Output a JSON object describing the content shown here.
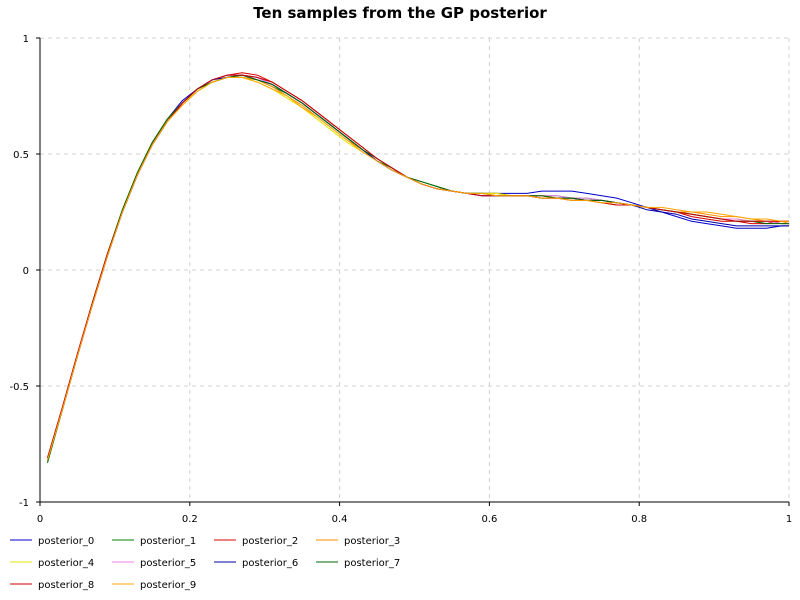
{
  "chart_data": {
    "type": "line",
    "title": "Ten samples from the GP posterior",
    "xlabel": "",
    "ylabel": "",
    "xlim": [
      0,
      1
    ],
    "ylim": [
      -1,
      1
    ],
    "xticks": [
      "0",
      "0.2",
      "0.4",
      "0.6",
      "0.8",
      "1"
    ],
    "yticks": [
      "-1",
      "-0.5",
      "0",
      "0.5",
      "1"
    ],
    "grid": true,
    "legend_position": "bottom",
    "series": [
      {
        "name": "posterior_0",
        "color": "#0000cc",
        "x": [
          0.01,
          0.03,
          0.05,
          0.07,
          0.09,
          0.11,
          0.13,
          0.15,
          0.17,
          0.19,
          0.21,
          0.23,
          0.25,
          0.27,
          0.29,
          0.31,
          0.33,
          0.35,
          0.37,
          0.39,
          0.41,
          0.43,
          0.45,
          0.47,
          0.49,
          0.51,
          0.53,
          0.55,
          0.57,
          0.59,
          0.61,
          0.63,
          0.65,
          0.67,
          0.69,
          0.71,
          0.73,
          0.75,
          0.77,
          0.79,
          0.81,
          0.83,
          0.85,
          0.87,
          0.89,
          0.91,
          0.93,
          0.95,
          0.97,
          0.99,
          1.0
        ],
        "y": [
          -0.82,
          -0.6,
          -0.37,
          -0.15,
          0.06,
          0.25,
          0.41,
          0.55,
          0.65,
          0.73,
          0.78,
          0.82,
          0.84,
          0.84,
          0.83,
          0.8,
          0.76,
          0.72,
          0.67,
          0.62,
          0.57,
          0.52,
          0.47,
          0.43,
          0.4,
          0.37,
          0.35,
          0.34,
          0.33,
          0.33,
          0.33,
          0.33,
          0.33,
          0.34,
          0.34,
          0.34,
          0.33,
          0.32,
          0.31,
          0.29,
          0.27,
          0.25,
          0.23,
          0.21,
          0.2,
          0.19,
          0.18,
          0.18,
          0.18,
          0.19,
          0.19
        ]
      },
      {
        "name": "posterior_1",
        "color": "#008000",
        "x": [
          0.01,
          0.03,
          0.05,
          0.07,
          0.09,
          0.11,
          0.13,
          0.15,
          0.17,
          0.19,
          0.21,
          0.23,
          0.25,
          0.27,
          0.29,
          0.31,
          0.33,
          0.35,
          0.37,
          0.39,
          0.41,
          0.43,
          0.45,
          0.47,
          0.49,
          0.51,
          0.53,
          0.55,
          0.57,
          0.59,
          0.61,
          0.63,
          0.65,
          0.67,
          0.69,
          0.71,
          0.73,
          0.75,
          0.77,
          0.79,
          0.81,
          0.83,
          0.85,
          0.87,
          0.89,
          0.91,
          0.93,
          0.95,
          0.97,
          0.99,
          1.0
        ],
        "y": [
          -0.83,
          -0.6,
          -0.37,
          -0.14,
          0.07,
          0.26,
          0.42,
          0.55,
          0.65,
          0.72,
          0.78,
          0.81,
          0.83,
          0.83,
          0.82,
          0.79,
          0.76,
          0.72,
          0.67,
          0.62,
          0.57,
          0.52,
          0.47,
          0.44,
          0.4,
          0.38,
          0.36,
          0.34,
          0.33,
          0.33,
          0.33,
          0.32,
          0.32,
          0.32,
          0.32,
          0.31,
          0.31,
          0.3,
          0.29,
          0.28,
          0.27,
          0.26,
          0.25,
          0.24,
          0.23,
          0.22,
          0.22,
          0.21,
          0.21,
          0.2,
          0.2
        ]
      },
      {
        "name": "posterior_2",
        "color": "#dd0000",
        "x": [
          0.01,
          0.03,
          0.05,
          0.07,
          0.09,
          0.11,
          0.13,
          0.15,
          0.17,
          0.19,
          0.21,
          0.23,
          0.25,
          0.27,
          0.29,
          0.31,
          0.33,
          0.35,
          0.37,
          0.39,
          0.41,
          0.43,
          0.45,
          0.47,
          0.49,
          0.51,
          0.53,
          0.55,
          0.57,
          0.59,
          0.61,
          0.63,
          0.65,
          0.67,
          0.69,
          0.71,
          0.73,
          0.75,
          0.77,
          0.79,
          0.81,
          0.83,
          0.85,
          0.87,
          0.89,
          0.91,
          0.93,
          0.95,
          0.97,
          0.99,
          1.0
        ],
        "y": [
          -0.81,
          -0.59,
          -0.36,
          -0.14,
          0.07,
          0.25,
          0.41,
          0.54,
          0.64,
          0.72,
          0.78,
          0.82,
          0.84,
          0.85,
          0.84,
          0.81,
          0.77,
          0.73,
          0.68,
          0.63,
          0.58,
          0.53,
          0.48,
          0.44,
          0.4,
          0.37,
          0.35,
          0.34,
          0.33,
          0.32,
          0.32,
          0.32,
          0.32,
          0.32,
          0.31,
          0.31,
          0.3,
          0.3,
          0.29,
          0.28,
          0.27,
          0.26,
          0.25,
          0.23,
          0.22,
          0.21,
          0.21,
          0.2,
          0.2,
          0.21,
          0.21
        ]
      },
      {
        "name": "posterior_3",
        "color": "#ff8c00",
        "x": [
          0.01,
          0.03,
          0.05,
          0.07,
          0.09,
          0.11,
          0.13,
          0.15,
          0.17,
          0.19,
          0.21,
          0.23,
          0.25,
          0.27,
          0.29,
          0.31,
          0.33,
          0.35,
          0.37,
          0.39,
          0.41,
          0.43,
          0.45,
          0.47,
          0.49,
          0.51,
          0.53,
          0.55,
          0.57,
          0.59,
          0.61,
          0.63,
          0.65,
          0.67,
          0.69,
          0.71,
          0.73,
          0.75,
          0.77,
          0.79,
          0.81,
          0.83,
          0.85,
          0.87,
          0.89,
          0.91,
          0.93,
          0.95,
          0.97,
          0.99,
          1.0
        ],
        "y": [
          -0.82,
          -0.6,
          -0.37,
          -0.15,
          0.06,
          0.25,
          0.41,
          0.54,
          0.64,
          0.71,
          0.77,
          0.81,
          0.83,
          0.83,
          0.82,
          0.79,
          0.75,
          0.71,
          0.66,
          0.61,
          0.56,
          0.52,
          0.47,
          0.43,
          0.4,
          0.37,
          0.35,
          0.34,
          0.33,
          0.33,
          0.33,
          0.32,
          0.32,
          0.31,
          0.31,
          0.3,
          0.3,
          0.29,
          0.28,
          0.28,
          0.27,
          0.26,
          0.25,
          0.25,
          0.24,
          0.23,
          0.23,
          0.22,
          0.21,
          0.21,
          0.2
        ]
      },
      {
        "name": "posterior_4",
        "color": "#e6e600",
        "x": [
          0.01,
          0.03,
          0.05,
          0.07,
          0.09,
          0.11,
          0.13,
          0.15,
          0.17,
          0.19,
          0.21,
          0.23,
          0.25,
          0.27,
          0.29,
          0.31,
          0.33,
          0.35,
          0.37,
          0.39,
          0.41,
          0.43,
          0.45,
          0.47,
          0.49,
          0.51,
          0.53,
          0.55,
          0.57,
          0.59,
          0.61,
          0.63,
          0.65,
          0.67,
          0.69,
          0.71,
          0.73,
          0.75,
          0.77,
          0.79,
          0.81,
          0.83,
          0.85,
          0.87,
          0.89,
          0.91,
          0.93,
          0.95,
          0.97,
          0.99,
          1.0
        ],
        "y": [
          -0.82,
          -0.6,
          -0.37,
          -0.14,
          0.07,
          0.26,
          0.42,
          0.55,
          0.65,
          0.72,
          0.77,
          0.81,
          0.83,
          0.83,
          0.81,
          0.78,
          0.74,
          0.7,
          0.65,
          0.6,
          0.55,
          0.51,
          0.47,
          0.43,
          0.4,
          0.37,
          0.35,
          0.34,
          0.33,
          0.33,
          0.33,
          0.32,
          0.32,
          0.32,
          0.31,
          0.31,
          0.3,
          0.3,
          0.29,
          0.28,
          0.27,
          0.26,
          0.25,
          0.24,
          0.23,
          0.22,
          0.22,
          0.21,
          0.21,
          0.2,
          0.2
        ]
      },
      {
        "name": "posterior_5",
        "color": "#ee82ee",
        "x": [
          0.01,
          0.03,
          0.05,
          0.07,
          0.09,
          0.11,
          0.13,
          0.15,
          0.17,
          0.19,
          0.21,
          0.23,
          0.25,
          0.27,
          0.29,
          0.31,
          0.33,
          0.35,
          0.37,
          0.39,
          0.41,
          0.43,
          0.45,
          0.47,
          0.49,
          0.51,
          0.53,
          0.55,
          0.57,
          0.59,
          0.61,
          0.63,
          0.65,
          0.67,
          0.69,
          0.71,
          0.73,
          0.75,
          0.77,
          0.79,
          0.81,
          0.83,
          0.85,
          0.87,
          0.89,
          0.91,
          0.93,
          0.95,
          0.97,
          0.99,
          1.0
        ],
        "y": [
          -0.82,
          -0.6,
          -0.37,
          -0.15,
          0.06,
          0.25,
          0.41,
          0.54,
          0.64,
          0.72,
          0.78,
          0.82,
          0.84,
          0.84,
          0.83,
          0.8,
          0.76,
          0.72,
          0.67,
          0.62,
          0.57,
          0.52,
          0.47,
          0.43,
          0.4,
          0.37,
          0.35,
          0.34,
          0.33,
          0.32,
          0.32,
          0.32,
          0.32,
          0.32,
          0.32,
          0.31,
          0.31,
          0.3,
          0.29,
          0.28,
          0.27,
          0.26,
          0.25,
          0.24,
          0.23,
          0.22,
          0.22,
          0.21,
          0.21,
          0.2,
          0.2
        ]
      },
      {
        "name": "posterior_6",
        "color": "#0000aa",
        "x": [
          0.01,
          0.03,
          0.05,
          0.07,
          0.09,
          0.11,
          0.13,
          0.15,
          0.17,
          0.19,
          0.21,
          0.23,
          0.25,
          0.27,
          0.29,
          0.31,
          0.33,
          0.35,
          0.37,
          0.39,
          0.41,
          0.43,
          0.45,
          0.47,
          0.49,
          0.51,
          0.53,
          0.55,
          0.57,
          0.59,
          0.61,
          0.63,
          0.65,
          0.67,
          0.69,
          0.71,
          0.73,
          0.75,
          0.77,
          0.79,
          0.81,
          0.83,
          0.85,
          0.87,
          0.89,
          0.91,
          0.93,
          0.95,
          0.97,
          0.99,
          1.0
        ],
        "y": [
          -0.82,
          -0.6,
          -0.37,
          -0.15,
          0.06,
          0.25,
          0.41,
          0.54,
          0.64,
          0.72,
          0.78,
          0.82,
          0.83,
          0.84,
          0.82,
          0.8,
          0.76,
          0.72,
          0.67,
          0.62,
          0.57,
          0.52,
          0.47,
          0.43,
          0.4,
          0.37,
          0.35,
          0.34,
          0.33,
          0.32,
          0.32,
          0.32,
          0.32,
          0.31,
          0.31,
          0.31,
          0.3,
          0.3,
          0.29,
          0.28,
          0.26,
          0.25,
          0.24,
          0.22,
          0.21,
          0.2,
          0.19,
          0.19,
          0.19,
          0.19,
          0.19
        ]
      },
      {
        "name": "posterior_7",
        "color": "#006400",
        "x": [
          0.01,
          0.03,
          0.05,
          0.07,
          0.09,
          0.11,
          0.13,
          0.15,
          0.17,
          0.19,
          0.21,
          0.23,
          0.25,
          0.27,
          0.29,
          0.31,
          0.33,
          0.35,
          0.37,
          0.39,
          0.41,
          0.43,
          0.45,
          0.47,
          0.49,
          0.51,
          0.53,
          0.55,
          0.57,
          0.59,
          0.61,
          0.63,
          0.65,
          0.67,
          0.69,
          0.71,
          0.73,
          0.75,
          0.77,
          0.79,
          0.81,
          0.83,
          0.85,
          0.87,
          0.89,
          0.91,
          0.93,
          0.95,
          0.97,
          0.99,
          1.0
        ],
        "y": [
          -0.83,
          -0.6,
          -0.37,
          -0.14,
          0.07,
          0.26,
          0.42,
          0.55,
          0.65,
          0.72,
          0.78,
          0.81,
          0.83,
          0.84,
          0.82,
          0.8,
          0.76,
          0.72,
          0.67,
          0.62,
          0.57,
          0.52,
          0.48,
          0.44,
          0.4,
          0.38,
          0.36,
          0.34,
          0.33,
          0.33,
          0.32,
          0.32,
          0.32,
          0.32,
          0.31,
          0.31,
          0.3,
          0.3,
          0.29,
          0.28,
          0.27,
          0.26,
          0.25,
          0.24,
          0.23,
          0.22,
          0.21,
          0.21,
          0.2,
          0.2,
          0.2
        ]
      },
      {
        "name": "posterior_8",
        "color": "#cc0000",
        "x": [
          0.01,
          0.03,
          0.05,
          0.07,
          0.09,
          0.11,
          0.13,
          0.15,
          0.17,
          0.19,
          0.21,
          0.23,
          0.25,
          0.27,
          0.29,
          0.31,
          0.33,
          0.35,
          0.37,
          0.39,
          0.41,
          0.43,
          0.45,
          0.47,
          0.49,
          0.51,
          0.53,
          0.55,
          0.57,
          0.59,
          0.61,
          0.63,
          0.65,
          0.67,
          0.69,
          0.71,
          0.73,
          0.75,
          0.77,
          0.79,
          0.81,
          0.83,
          0.85,
          0.87,
          0.89,
          0.91,
          0.93,
          0.95,
          0.97,
          0.99,
          1.0
        ],
        "y": [
          -0.81,
          -0.59,
          -0.36,
          -0.14,
          0.07,
          0.25,
          0.41,
          0.54,
          0.64,
          0.72,
          0.78,
          0.82,
          0.84,
          0.84,
          0.83,
          0.81,
          0.77,
          0.73,
          0.68,
          0.63,
          0.58,
          0.53,
          0.48,
          0.44,
          0.4,
          0.37,
          0.35,
          0.34,
          0.33,
          0.32,
          0.32,
          0.32,
          0.32,
          0.31,
          0.31,
          0.3,
          0.3,
          0.29,
          0.28,
          0.28,
          0.27,
          0.26,
          0.25,
          0.24,
          0.23,
          0.22,
          0.21,
          0.21,
          0.21,
          0.21,
          0.21
        ]
      },
      {
        "name": "posterior_9",
        "color": "#ffa500",
        "x": [
          0.01,
          0.03,
          0.05,
          0.07,
          0.09,
          0.11,
          0.13,
          0.15,
          0.17,
          0.19,
          0.21,
          0.23,
          0.25,
          0.27,
          0.29,
          0.31,
          0.33,
          0.35,
          0.37,
          0.39,
          0.41,
          0.43,
          0.45,
          0.47,
          0.49,
          0.51,
          0.53,
          0.55,
          0.57,
          0.59,
          0.61,
          0.63,
          0.65,
          0.67,
          0.69,
          0.71,
          0.73,
          0.75,
          0.77,
          0.79,
          0.81,
          0.83,
          0.85,
          0.87,
          0.89,
          0.91,
          0.93,
          0.95,
          0.97,
          0.99,
          1.0
        ],
        "y": [
          -0.82,
          -0.6,
          -0.37,
          -0.15,
          0.06,
          0.25,
          0.41,
          0.54,
          0.64,
          0.71,
          0.77,
          0.81,
          0.83,
          0.83,
          0.81,
          0.78,
          0.75,
          0.7,
          0.66,
          0.61,
          0.56,
          0.51,
          0.47,
          0.43,
          0.4,
          0.37,
          0.35,
          0.34,
          0.33,
          0.33,
          0.32,
          0.32,
          0.32,
          0.31,
          0.31,
          0.3,
          0.3,
          0.29,
          0.29,
          0.28,
          0.27,
          0.27,
          0.26,
          0.25,
          0.25,
          0.24,
          0.23,
          0.22,
          0.22,
          0.21,
          0.21
        ]
      }
    ]
  }
}
